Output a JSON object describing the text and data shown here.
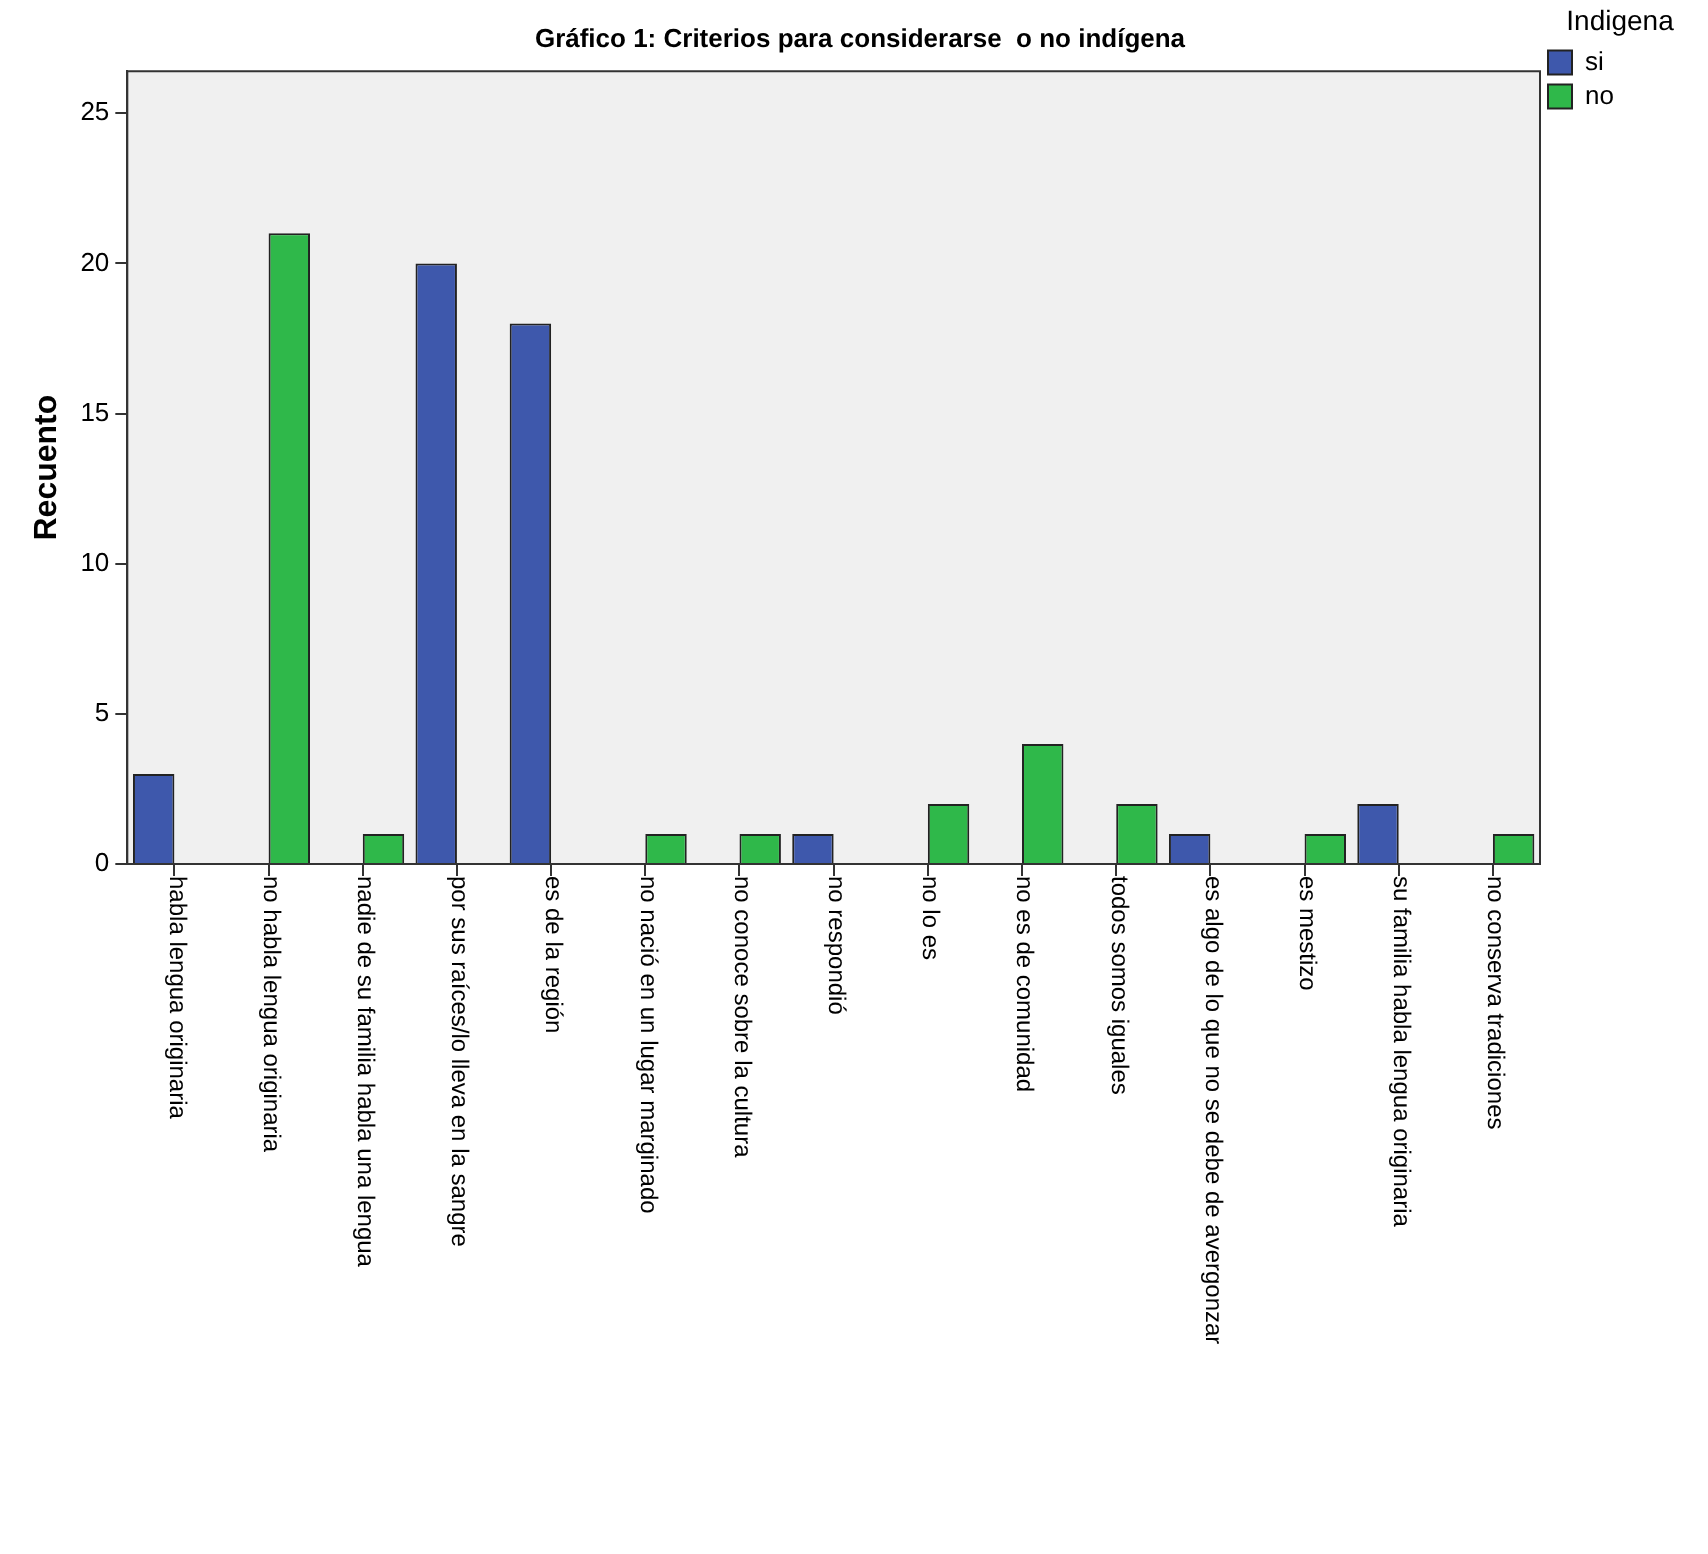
{
  "chart_data": {
    "type": "bar",
    "title": "Gráfico 1: Criterios para considerarse  o no indígena",
    "ylabel": "Recuento",
    "legend_title": "Indigena",
    "categories": [
      "habla lengua originaria",
      "no habla lengua originaria",
      "nadie de su familia habla una lengua",
      "por sus raíces/lo lleva en la sangre",
      "es de la región",
      "no nació en un lugar marginado",
      "no conoce sobre la cultura",
      "no respondió",
      "no lo es",
      "no es de comunidad",
      "todos somos iguales",
      "es algo de lo que no se debe de avergonzar",
      "es mestizo",
      "su familia habla lengua originaria",
      "no conserva tradiciones"
    ],
    "series": [
      {
        "name": "si",
        "color": "#3e58ac",
        "values": [
          3,
          null,
          null,
          20,
          18,
          null,
          null,
          1,
          null,
          null,
          null,
          1,
          null,
          2,
          null
        ]
      },
      {
        "name": "no",
        "color": "#2fb84a",
        "values": [
          null,
          21,
          1,
          null,
          null,
          1,
          1,
          null,
          2,
          4,
          2,
          null,
          1,
          null,
          1
        ]
      }
    ],
    "ylim": [
      0,
      26.4
    ],
    "yticks": [
      0,
      5,
      10,
      15,
      20,
      25
    ],
    "grid": false,
    "legend": "top right"
  }
}
